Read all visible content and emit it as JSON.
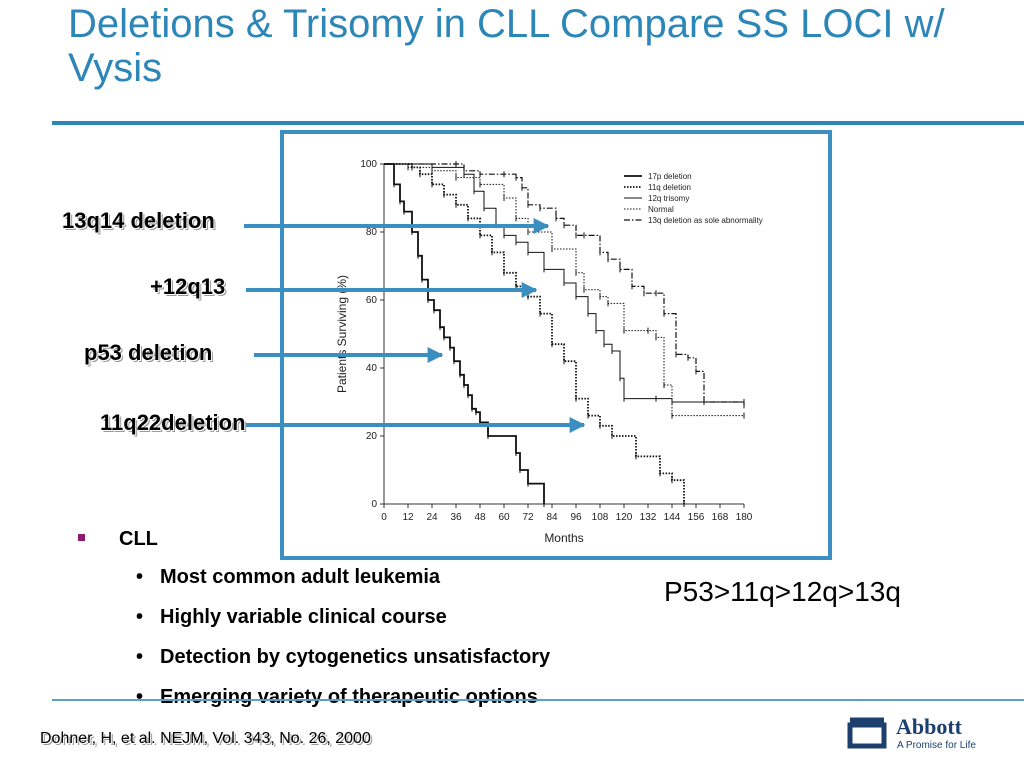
{
  "slide": {
    "title": "Deletions & Trisomy in CLL Compare SS LOCI w/ Vysis",
    "callouts": [
      "13q14 deletion",
      "+12q13",
      "p53 deletion",
      "11q22deletion"
    ],
    "bullet_main": "CLL",
    "bullets": [
      "Most common adult leukemia",
      "Highly variable clinical course",
      "Detection by cytogenetics unsatisfactory",
      "Emerging variety of therapeutic options"
    ],
    "ranking": "P53>11q>12q>13q",
    "citation": "Dohner, H, et al. NEJM, Vol. 343, No. 26, 2000",
    "logo": {
      "name": "Abbott",
      "tagline": "A Promise for Life"
    },
    "colors": {
      "title": "#2d86b8",
      "rule": "#2d86b8",
      "frame": "#3c8fc0",
      "arrow": "#3b8fc0",
      "bullet": "#8c1d6e",
      "logo": "#1c3f6e"
    },
    "icons": {
      "bullet_main": "square-bullet-icon",
      "bullets": "dot-bullet-icon",
      "logo": "abbott-logo-icon"
    }
  },
  "chart_data": {
    "type": "line",
    "subtype": "kaplan-meier-survival",
    "title": "",
    "xlabel": "Months",
    "ylabel": "Patients Surviving (%)",
    "xlim": [
      0,
      180
    ],
    "ylim": [
      0,
      100
    ],
    "x_ticks": [
      0,
      12,
      24,
      36,
      48,
      60,
      72,
      84,
      96,
      108,
      120,
      132,
      144,
      156,
      168,
      180
    ],
    "y_ticks": [
      0,
      20,
      40,
      60,
      80,
      100
    ],
    "grid": false,
    "legend_position": "top-right",
    "series": [
      {
        "name": "17p deletion",
        "line_style": "solid-thick",
        "x": [
          0,
          5,
          8,
          10,
          14,
          17,
          19,
          22,
          25,
          28,
          30,
          33,
          35,
          38,
          40,
          42,
          44,
          46,
          48,
          52,
          66,
          68,
          72,
          80
        ],
        "y": [
          100,
          94,
          89,
          86,
          80,
          73,
          66,
          60,
          57,
          52,
          49,
          46,
          42,
          38,
          35,
          32,
          28,
          27,
          24,
          20,
          15,
          10,
          6,
          0
        ]
      },
      {
        "name": "11q deletion",
        "line_style": "dotted-thick",
        "x": [
          0,
          14,
          18,
          24,
          30,
          36,
          42,
          48,
          54,
          60,
          66,
          72,
          78,
          84,
          90,
          96,
          102,
          108,
          114,
          126,
          138,
          144,
          150
        ],
        "y": [
          100,
          99,
          97,
          94,
          91,
          88,
          84,
          79,
          74,
          68,
          64,
          61,
          56,
          47,
          42,
          31,
          26,
          23,
          20,
          14,
          9,
          7,
          0
        ]
      },
      {
        "name": "12q trisomy",
        "line_style": "solid-thin",
        "x": [
          0,
          24,
          40,
          45,
          50,
          56,
          60,
          66,
          72,
          80,
          90,
          96,
          102,
          106,
          110,
          114,
          118,
          120,
          136,
          144,
          180
        ],
        "y": [
          100,
          99,
          97,
          92,
          87,
          82,
          79,
          77,
          74,
          69,
          65,
          61,
          56,
          51,
          47,
          45,
          37,
          31,
          31,
          30,
          30
        ]
      },
      {
        "name": "Normal",
        "line_style": "dotted-thin",
        "x": [
          0,
          12,
          24,
          36,
          48,
          60,
          66,
          72,
          84,
          96,
          100,
          108,
          112,
          120,
          132,
          136,
          140,
          144,
          180
        ],
        "y": [
          100,
          99,
          98,
          96,
          94,
          90,
          84,
          80,
          75,
          68,
          63,
          61,
          59,
          51,
          51,
          49,
          35,
          26,
          26
        ]
      },
      {
        "name": "13q deletion as sole abnormality",
        "line_style": "dash-dot",
        "x": [
          0,
          36,
          40,
          48,
          60,
          66,
          69,
          72,
          78,
          86,
          90,
          96,
          100,
          108,
          112,
          118,
          124,
          130,
          136,
          140,
          146,
          152,
          156,
          160,
          180
        ],
        "y": [
          100,
          100,
          98,
          97,
          97,
          96,
          93,
          88,
          87,
          84,
          82,
          79,
          79,
          74,
          72,
          69,
          64,
          62,
          62,
          56,
          44,
          43,
          39,
          30,
          29
        ]
      }
    ]
  }
}
